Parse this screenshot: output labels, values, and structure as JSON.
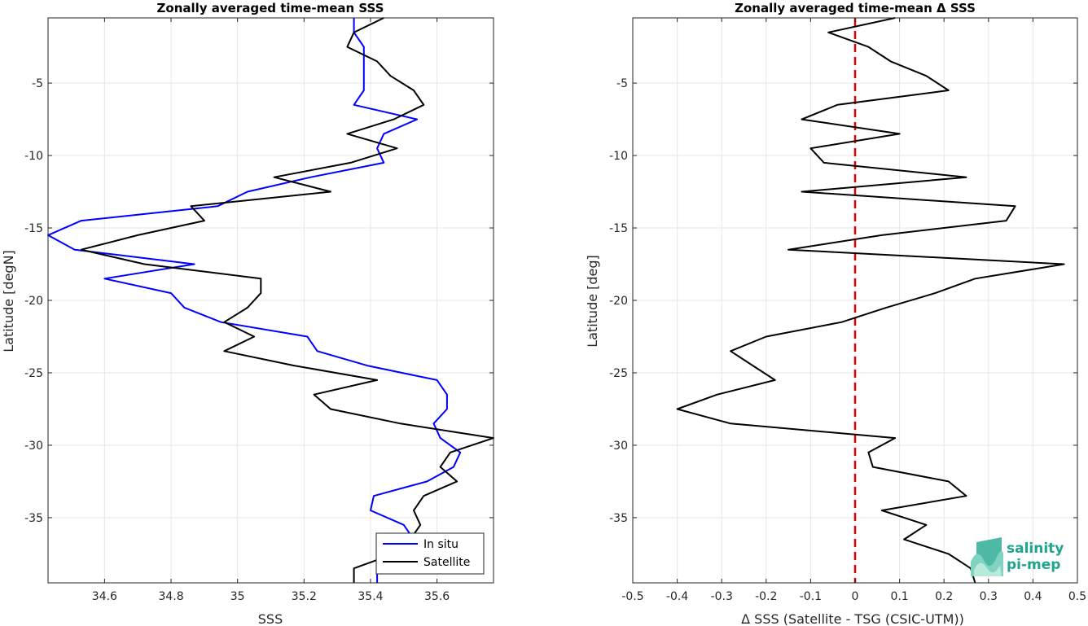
{
  "chart_data": [
    {
      "type": "line",
      "title": "Zonally averaged time-mean SSS",
      "xlabel": "SSS",
      "ylabel": "Latitude [degN]",
      "xlim": [
        34.43,
        35.77
      ],
      "ylim": [
        -39.5,
        -0.5
      ],
      "xticks": [
        34.6,
        34.8,
        35,
        35.2,
        35.4,
        35.6
      ],
      "xtick_labels": [
        "34.6",
        "34.8",
        "35",
        "35.2",
        "35.4",
        "35.6"
      ],
      "yticks": [
        -35,
        -30,
        -25,
        -20,
        -15,
        -10,
        -5
      ],
      "ytick_labels": [
        "-35",
        "-30",
        "-25",
        "-20",
        "-15",
        "-10",
        "-5"
      ],
      "grid": true,
      "legend_position": "bottom-right",
      "series": [
        {
          "name": "In situ",
          "color": "#0000ff",
          "x": [
            35.35,
            35.35,
            35.38,
            35.38,
            35.38,
            35.38,
            35.35,
            35.54,
            35.44,
            35.42,
            35.44,
            35.22,
            35.03,
            34.94,
            34.53,
            34.43,
            34.51,
            34.87,
            34.6,
            34.8,
            34.84,
            34.95,
            35.21,
            35.24,
            35.39,
            35.6,
            35.63,
            35.63,
            35.59,
            35.61,
            35.67,
            35.65,
            35.57,
            35.41,
            35.4,
            35.5,
            35.53,
            35.48,
            35.42,
            35.42
          ],
          "y": [
            -0.5,
            -1.5,
            -2.5,
            -3.5,
            -4.5,
            -5.5,
            -6.5,
            -7.5,
            -8.5,
            -9.5,
            -10.5,
            -11.5,
            -12.5,
            -13.5,
            -14.5,
            -15.5,
            -16.5,
            -17.5,
            -18.5,
            -19.5,
            -20.5,
            -21.5,
            -22.5,
            -23.5,
            -24.5,
            -25.5,
            -26.5,
            -27.5,
            -28.5,
            -29.5,
            -30.5,
            -31.5,
            -32.5,
            -33.5,
            -34.5,
            -35.5,
            -36.5,
            -37.5,
            -38.5,
            -39.5
          ]
        },
        {
          "name": "Satellite",
          "color": "#000000",
          "x": [
            35.44,
            35.35,
            35.33,
            35.42,
            35.46,
            35.53,
            35.56,
            35.47,
            35.33,
            35.48,
            35.34,
            35.11,
            35.28,
            34.86,
            34.9,
            34.7,
            34.53,
            34.72,
            35.07,
            35.07,
            35.03,
            34.96,
            35.05,
            34.96,
            35.17,
            35.42,
            35.23,
            35.28,
            35.49,
            35.77,
            35.64,
            35.61,
            35.66,
            35.56,
            35.53,
            35.55,
            35.52,
            35.47,
            35.35,
            35.35
          ],
          "y": [
            -0.5,
            -1.5,
            -2.5,
            -3.5,
            -4.5,
            -5.5,
            -6.5,
            -7.5,
            -8.5,
            -9.5,
            -10.5,
            -11.5,
            -12.5,
            -13.5,
            -14.5,
            -15.5,
            -16.5,
            -17.5,
            -18.5,
            -19.5,
            -20.5,
            -21.5,
            -22.5,
            -23.5,
            -24.5,
            -25.5,
            -26.5,
            -27.5,
            -28.5,
            -29.5,
            -30.5,
            -31.5,
            -32.5,
            -33.5,
            -34.5,
            -35.5,
            -36.5,
            -37.5,
            -38.5,
            -39.5
          ]
        }
      ]
    },
    {
      "type": "line",
      "title": "Zonally averaged time-mean Δ SSS",
      "xlabel": "Δ SSS (Satellite - TSG (CSIC-UTM))",
      "ylabel": "Latitude [deg]",
      "xlim": [
        -0.5,
        0.5
      ],
      "ylim": [
        -39.5,
        -0.5
      ],
      "xticks": [
        -0.5,
        -0.4,
        -0.3,
        -0.2,
        -0.1,
        0,
        0.1,
        0.2,
        0.3,
        0.4,
        0.5
      ],
      "xtick_labels": [
        "-0.5",
        "-0.4",
        "-0.3",
        "-0.2",
        "-0.1",
        "0",
        "0.1",
        "0.2",
        "0.3",
        "0.4",
        "0.5"
      ],
      "yticks": [
        -35,
        -30,
        -25,
        -20,
        -15,
        -10,
        -5
      ],
      "ytick_labels": [
        "-35",
        "-30",
        "-25",
        "-20",
        "-15",
        "-10",
        "-5"
      ],
      "grid": true,
      "reference_line": {
        "x": 0,
        "color": "#e00000",
        "style": "dashed"
      },
      "series": [
        {
          "color": "#000000",
          "x": [
            0.09,
            -0.06,
            0.03,
            0.08,
            0.16,
            0.21,
            -0.04,
            -0.12,
            0.1,
            -0.1,
            -0.07,
            0.25,
            -0.12,
            0.36,
            0.34,
            0.06,
            -0.15,
            0.47,
            0.27,
            0.18,
            0.07,
            -0.03,
            -0.2,
            -0.28,
            -0.23,
            -0.18,
            -0.31,
            -0.4,
            -0.28,
            0.09,
            0.03,
            0.04,
            0.21,
            0.25,
            0.06,
            0.16,
            0.11,
            0.21,
            0.26,
            0.27
          ],
          "y": [
            -0.5,
            -1.5,
            -2.5,
            -3.5,
            -4.5,
            -5.5,
            -6.5,
            -7.5,
            -8.5,
            -9.5,
            -10.5,
            -11.5,
            -12.5,
            -13.5,
            -14.5,
            -15.5,
            -16.5,
            -17.5,
            -18.5,
            -19.5,
            -20.5,
            -21.5,
            -22.5,
            -23.5,
            -24.5,
            -25.5,
            -26.5,
            -27.5,
            -28.5,
            -29.5,
            -30.5,
            -31.5,
            -32.5,
            -33.5,
            -34.5,
            -35.5,
            -36.5,
            -37.5,
            -38.5,
            -39.5
          ]
        }
      ]
    }
  ],
  "logo": {
    "line1": "salinity",
    "line2": "pi-mep",
    "color": "#1fa58f"
  }
}
